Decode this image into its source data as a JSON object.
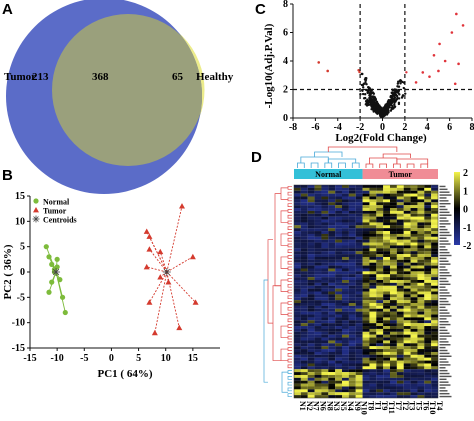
{
  "panels": {
    "A": "A",
    "B": "B",
    "C": "C",
    "D": "D"
  },
  "colors": {
    "tumor_set": "#5b6cc8",
    "healthy_set": "#ecec8c",
    "overlap": "#9aa07c",
    "normal_points": "#7dbb3b",
    "tumor_points": "#d43a2e",
    "centroid": "#444444",
    "volcano_sig_up": "#e0333a",
    "volcano_sig_down": "#d43a2e",
    "volcano_ns": "#111111",
    "heat_low": "#2a3aa8",
    "heat_mid": "#000000",
    "heat_high": "#f4f44a",
    "normal_bar": "#33c0d8",
    "tumor_bar": "#f08c96",
    "dendro_blue": "#46a8d8",
    "dendro_red": "#e04a4a"
  },
  "chart_data": [
    {
      "type": "venn",
      "sets": [
        {
          "name": "Tumor",
          "only": 213
        },
        {
          "name": "Healthy",
          "only": 65
        }
      ],
      "overlap": 368
    },
    {
      "type": "scatter",
      "xlabel": "PC1 ( 64%)",
      "ylabel": "PC2 ( 36%)",
      "xlim": [
        -15,
        20
      ],
      "ylim": [
        -15,
        15
      ],
      "xticks": [
        -15,
        -10,
        -5,
        0,
        5,
        10,
        15
      ],
      "yticks": [
        -15,
        -10,
        -5,
        0,
        5,
        10,
        15
      ],
      "legend": {
        "placement": "top-left",
        "entries": [
          "Normal",
          "Tumor",
          "Centroids"
        ]
      },
      "series": [
        {
          "name": "Normal",
          "marker": "circle",
          "points": [
            [
              -12,
              5
            ],
            [
              -11.5,
              3
            ],
            [
              -11,
              1.5
            ],
            [
              -10.5,
              0.5
            ],
            [
              -10,
              2.5
            ],
            [
              -10.5,
              0
            ],
            [
              -11,
              -2
            ],
            [
              -11.5,
              -4
            ],
            [
              -9,
              -5
            ],
            [
              -8.5,
              -8
            ],
            [
              -9.5,
              -1.5
            ],
            [
              -10,
              1
            ]
          ],
          "centroid": [
            -10.2,
            0
          ]
        },
        {
          "name": "Tumor",
          "marker": "triangle",
          "points": [
            [
              6.5,
              8
            ],
            [
              7,
              7
            ],
            [
              13,
              13
            ],
            [
              15,
              3
            ],
            [
              15.5,
              -6
            ],
            [
              12.5,
              -11
            ],
            [
              8,
              -12
            ],
            [
              7,
              -6
            ],
            [
              6.5,
              1
            ],
            [
              7,
              4.5
            ],
            [
              9,
              4
            ],
            [
              10.5,
              -2
            ],
            [
              9,
              -1
            ]
          ],
          "centroid": [
            10.2,
            0
          ]
        }
      ]
    },
    {
      "type": "scatter",
      "xlabel": "Log2(Fold Change)",
      "ylabel": "-Log10(Adj.P.Val)",
      "xlim": [
        -8,
        8
      ],
      "ylim": [
        0,
        8
      ],
      "xticks": [
        -8,
        -6,
        -4,
        -2,
        0,
        2,
        4,
        6,
        8
      ],
      "yticks": [
        0,
        2,
        4,
        6,
        8
      ],
      "thresholds": {
        "x": [
          -2,
          2
        ],
        "y": 2
      }
    },
    {
      "type": "heatmap",
      "column_groups": [
        {
          "name": "Normal",
          "count": 10
        },
        {
          "name": "Tumor",
          "count": 11
        }
      ],
      "column_labels": [
        "N1",
        "N2",
        "N7",
        "N6",
        "N8",
        "N3",
        "N5",
        "N4",
        "N9",
        "N10",
        "T8",
        "T1",
        "T9",
        "T11",
        "T7",
        "T2",
        "T3",
        "T5",
        "T6",
        "T10",
        "T4"
      ],
      "colorbar": {
        "ticks": [
          "2",
          "1",
          "0",
          "-1",
          "-2"
        ],
        "range": [
          -2,
          2
        ]
      }
    }
  ]
}
